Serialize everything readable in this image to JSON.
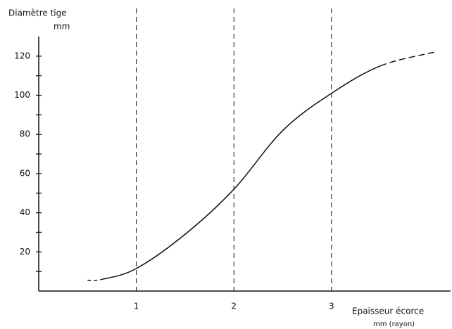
{
  "chart_data": {
    "type": "line",
    "y_label": "Diamètre tige",
    "y_unit": "mm",
    "x_label": "Epaisseur écorce",
    "x_unit": "mm  (rayon)",
    "x": [
      0.5,
      0.65,
      1,
      1.5,
      2,
      2.5,
      3,
      3.5,
      4.05
    ],
    "values": [
      5.5,
      6,
      11.5,
      29,
      52,
      82,
      101,
      115,
      122
    ],
    "color": "#111111",
    "xlim": [
      0,
      4.22
    ],
    "xticks": [
      1,
      2,
      3
    ],
    "ylim": [
      0,
      130
    ],
    "yticks": [
      20,
      40,
      60,
      80,
      100,
      120
    ],
    "yminorticks": [
      10,
      30,
      50,
      70,
      90,
      110
    ],
    "grid": true
  }
}
